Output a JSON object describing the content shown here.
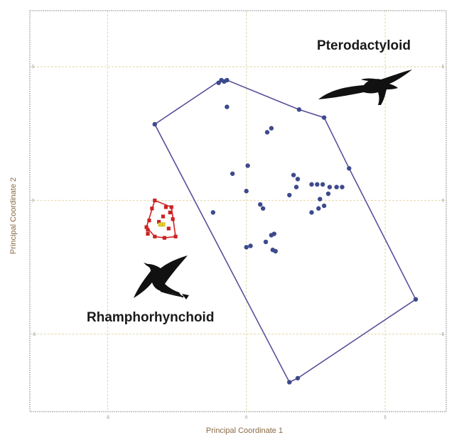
{
  "chart_data": {
    "type": "scatter",
    "title": "",
    "xlabel": "Principal Coordinate 1",
    "ylabel": "Principal Coordinate 2",
    "xlim": [
      -7.8,
      7.2
    ],
    "ylim": [
      -7.9,
      7.1
    ],
    "x_ticks": [
      -5,
      0,
      5
    ],
    "y_ticks": [
      -5,
      0,
      5
    ],
    "x_tick_labels": [
      "-5",
      "0",
      "5"
    ],
    "y_tick_labels": [
      "-5",
      "0",
      "5"
    ],
    "grid": true,
    "legend": "none",
    "annotations": [
      "Pterodactyloid",
      "Rhamphorhynchoid"
    ],
    "colors": {
      "pterodactyloid": "#3d4a8c",
      "pterodactyloid_hull": "#5a4f9a",
      "rhamphorhynchoid": "#cc2222",
      "rhamphorhynchoid_highlight": "#e8d020",
      "grid": "#e2d8a8",
      "frame": "#999999",
      "silhouette": "#111111"
    },
    "series": [
      {
        "group": "Pterodactyloid",
        "marker": "circle",
        "points": [
          [
            -1.0,
            4.4
          ],
          [
            -0.8,
            4.45
          ],
          [
            -0.7,
            4.5
          ],
          [
            -0.9,
            4.5
          ],
          [
            -0.7,
            3.5
          ],
          [
            1.9,
            3.4
          ],
          [
            2.8,
            3.1
          ],
          [
            -3.3,
            2.85
          ],
          [
            0.9,
            2.7
          ],
          [
            0.75,
            2.55
          ],
          [
            3.7,
            1.2
          ],
          [
            0.05,
            1.3
          ],
          [
            -0.5,
            1.0
          ],
          [
            1.7,
            0.95
          ],
          [
            1.85,
            0.8
          ],
          [
            0.0,
            0.35
          ],
          [
            2.35,
            0.6
          ],
          [
            2.55,
            0.6
          ],
          [
            2.75,
            0.6
          ],
          [
            3.0,
            0.5
          ],
          [
            3.25,
            0.5
          ],
          [
            3.45,
            0.5
          ],
          [
            1.8,
            0.5
          ],
          [
            1.55,
            0.2
          ],
          [
            2.95,
            0.25
          ],
          [
            2.65,
            0.05
          ],
          [
            0.5,
            -0.15
          ],
          [
            0.6,
            -0.3
          ],
          [
            2.8,
            -0.2
          ],
          [
            2.6,
            -0.3
          ],
          [
            2.35,
            -0.45
          ],
          [
            -1.2,
            -0.45
          ],
          [
            0.9,
            -1.3
          ],
          [
            1.0,
            -1.25
          ],
          [
            0.7,
            -1.55
          ],
          [
            0.0,
            -1.75
          ],
          [
            0.15,
            -1.7
          ],
          [
            0.95,
            -1.85
          ],
          [
            1.05,
            -1.9
          ],
          [
            6.1,
            -3.7
          ],
          [
            1.85,
            -6.65
          ],
          [
            1.55,
            -6.8
          ]
        ],
        "hull": [
          [
            -1.0,
            4.45
          ],
          [
            -0.7,
            4.5
          ],
          [
            1.9,
            3.4
          ],
          [
            2.8,
            3.1
          ],
          [
            3.7,
            1.2
          ],
          [
            6.1,
            -3.7
          ],
          [
            1.85,
            -6.65
          ],
          [
            1.55,
            -6.8
          ],
          [
            -3.3,
            2.85
          ]
        ]
      },
      {
        "group": "Rhamphorhynchoid",
        "marker": "square",
        "points": [
          [
            -3.3,
            0.0
          ],
          [
            -2.9,
            -0.25
          ],
          [
            -2.7,
            -0.25
          ],
          [
            -3.4,
            -0.3
          ],
          [
            -2.75,
            -0.45
          ],
          [
            -3.0,
            -0.6
          ],
          [
            -2.65,
            -0.7
          ],
          [
            -3.5,
            -0.75
          ],
          [
            -3.15,
            -0.8
          ],
          [
            -3.6,
            -1.0
          ],
          [
            -3.55,
            -1.1
          ],
          [
            -2.8,
            -1.05
          ],
          [
            -2.55,
            -1.35
          ],
          [
            -3.3,
            -1.35
          ],
          [
            -3.55,
            -1.25
          ],
          [
            -2.95,
            -1.4
          ]
        ],
        "highlight_points": [
          [
            -3.0,
            -0.9
          ],
          [
            -3.1,
            -0.9
          ]
        ],
        "hull": [
          [
            -3.3,
            0.0
          ],
          [
            -2.7,
            -0.25
          ],
          [
            -2.55,
            -1.35
          ],
          [
            -2.95,
            -1.4
          ],
          [
            -3.3,
            -1.35
          ],
          [
            -3.6,
            -1.0
          ]
        ]
      }
    ]
  }
}
